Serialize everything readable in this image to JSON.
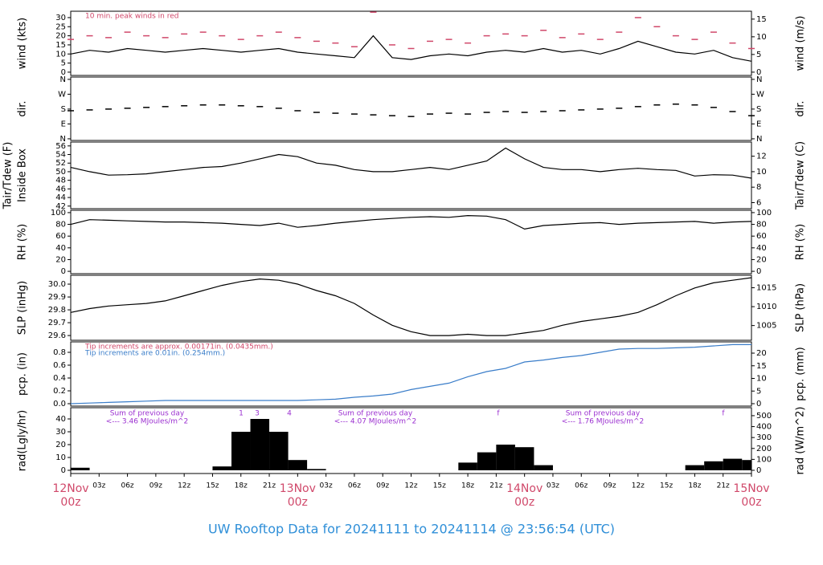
{
  "title": "UW Rooftop Data for 20241111  to  20241114 @ 23:56:54  (UTC)",
  "chart_data": [
    {
      "type": "line",
      "ylabel": "wind (kts)",
      "y2label": "wind (m/s)",
      "annotations": [
        {
          "text": "10 min. peak winds in red",
          "color": "#d0486a"
        }
      ],
      "xlim": [
        0,
        72
      ],
      "x": [
        0,
        2,
        4,
        6,
        8,
        10,
        12,
        14,
        16,
        18,
        20,
        22,
        24,
        26,
        28,
        30,
        32,
        34,
        36,
        38,
        40,
        42,
        44,
        46,
        48,
        50,
        52,
        54,
        56,
        58,
        60,
        62,
        64,
        66,
        68,
        70,
        72
      ],
      "ylim": [
        -1.8,
        33.5
      ],
      "yticks": [
        0,
        5,
        10,
        15,
        20,
        25,
        30
      ],
      "y2lim": [
        -0.93,
        17.23
      ],
      "y2ticks": [
        0,
        5,
        10,
        15
      ],
      "series": [
        {
          "color": "#000000",
          "marker": "line",
          "values": [
            10,
            12,
            11,
            13,
            12,
            11,
            12,
            13,
            12,
            11,
            12,
            13,
            11,
            10,
            9,
            8,
            20,
            8,
            7,
            9,
            10,
            9,
            11,
            12,
            11,
            13,
            11,
            12,
            10,
            13,
            17,
            14,
            11,
            10,
            12,
            8,
            6
          ]
        },
        {
          "color": "#d0486a",
          "marker": "dash",
          "values": [
            18,
            20,
            19,
            22,
            20,
            19,
            21,
            22,
            20,
            18,
            20,
            22,
            19,
            17,
            16,
            14,
            33,
            15,
            13,
            17,
            18,
            16,
            20,
            21,
            20,
            23,
            19,
            21,
            18,
            22,
            30,
            25,
            20,
            18,
            22,
            16,
            13
          ]
        }
      ]
    },
    {
      "type": "scatter",
      "ylabel": "dir.",
      "y2label": "dir.",
      "xlim": [
        0,
        72
      ],
      "x": [
        0,
        2,
        4,
        6,
        8,
        10,
        12,
        14,
        16,
        18,
        20,
        22,
        24,
        26,
        28,
        30,
        32,
        34,
        36,
        38,
        40,
        42,
        44,
        46,
        48,
        50,
        52,
        54,
        56,
        58,
        60,
        62,
        64,
        66,
        68,
        70,
        72
      ],
      "ylim": [
        -10,
        374
      ],
      "yticks": [
        {
          "value": 0,
          "label": "N"
        },
        {
          "value": 90,
          "label": "E"
        },
        {
          "value": 180,
          "label": "S"
        },
        {
          "value": 270,
          "label": "W"
        },
        {
          "value": 360,
          "label": "N"
        }
      ],
      "y2lim": [
        -10,
        374
      ],
      "y2ticks": [
        {
          "value": 0,
          "label": "N"
        },
        {
          "value": 90,
          "label": "E"
        },
        {
          "value": 180,
          "label": "S"
        },
        {
          "value": 270,
          "label": "W"
        },
        {
          "value": 360,
          "label": "N"
        }
      ],
      "series": [
        {
          "color": "#000000",
          "marker": "dash",
          "values": [
            170,
            175,
            180,
            185,
            190,
            195,
            200,
            205,
            205,
            200,
            195,
            185,
            170,
            160,
            155,
            150,
            145,
            140,
            135,
            150,
            155,
            150,
            160,
            165,
            160,
            165,
            170,
            175,
            180,
            185,
            195,
            205,
            210,
            205,
            190,
            165,
            140
          ]
        }
      ]
    },
    {
      "type": "line",
      "ylabel": "Tair/Tdew (F)",
      "ylabel2": "Inside Box",
      "y2label": "Tair/Tdew (C)",
      "xlim": [
        0,
        72
      ],
      "x": [
        0,
        2,
        4,
        6,
        8,
        10,
        12,
        14,
        16,
        18,
        20,
        22,
        24,
        26,
        28,
        30,
        32,
        34,
        36,
        38,
        40,
        42,
        44,
        46,
        48,
        50,
        52,
        54,
        56,
        58,
        60,
        62,
        64,
        66,
        68,
        70,
        72
      ],
      "ylim": [
        41.4,
        56.9
      ],
      "yticks": [
        42,
        44,
        46,
        48,
        50,
        52,
        54,
        56
      ],
      "y2lim": [
        5.22,
        13.83
      ],
      "y2ticks": [
        6,
        8,
        10,
        12
      ],
      "series": [
        {
          "color": "#000000",
          "marker": "line",
          "values": [
            51,
            50,
            49.2,
            49.3,
            49.5,
            50,
            50.5,
            51,
            51.2,
            52,
            53,
            54,
            53.5,
            52,
            51.5,
            50.5,
            50,
            50,
            50.5,
            51,
            50.5,
            51.5,
            52.5,
            55.5,
            53,
            51,
            50.5,
            50.5,
            50,
            50.5,
            50.8,
            50.5,
            50.3,
            49,
            49.3,
            49.2,
            48.5
          ]
        }
      ]
    },
    {
      "type": "line",
      "ylabel": "RH (%)",
      "y2label": "RH (%)",
      "xlim": [
        0,
        72
      ],
      "x": [
        0,
        2,
        4,
        6,
        8,
        10,
        12,
        14,
        16,
        18,
        20,
        22,
        24,
        26,
        28,
        30,
        32,
        34,
        36,
        38,
        40,
        42,
        44,
        46,
        48,
        50,
        52,
        54,
        56,
        58,
        60,
        62,
        64,
        66,
        68,
        70,
        72
      ],
      "ylim": [
        -4,
        104
      ],
      "yticks": [
        0,
        20,
        40,
        60,
        80,
        100
      ],
      "y2lim": [
        -4,
        104
      ],
      "y2ticks": [
        0,
        20,
        40,
        60,
        80,
        100
      ],
      "series": [
        {
          "color": "#000000",
          "marker": "line",
          "values": [
            80,
            88,
            87,
            86,
            85,
            84,
            84,
            83,
            82,
            80,
            78,
            82,
            75,
            78,
            82,
            85,
            88,
            90,
            92,
            93,
            92,
            95,
            94,
            88,
            72,
            78,
            80,
            82,
            83,
            80,
            82,
            83,
            84,
            85,
            82,
            84,
            85
          ]
        }
      ]
    },
    {
      "type": "line",
      "ylabel": "SLP (inHg)",
      "y2label": "SLP (hPa)",
      "xlim": [
        0,
        72
      ],
      "x": [
        0,
        2,
        4,
        6,
        8,
        10,
        12,
        14,
        16,
        18,
        20,
        22,
        24,
        26,
        28,
        30,
        32,
        34,
        36,
        38,
        40,
        42,
        44,
        46,
        48,
        50,
        52,
        54,
        56,
        58,
        60,
        62,
        64,
        66,
        68,
        70,
        72
      ],
      "ylim": [
        29.563,
        30.069
      ],
      "yticks": [
        29.6,
        29.7,
        29.8,
        29.9,
        {
          "value": 30,
          "label": "30.0"
        }
      ],
      "y2lim": [
        1001.1,
        1018.3
      ],
      "y2ticks": [
        1005,
        1010,
        1015
      ],
      "series": [
        {
          "color": "#000000",
          "marker": "line",
          "values": [
            29.78,
            29.81,
            29.83,
            29.84,
            29.85,
            29.87,
            29.91,
            29.95,
            29.99,
            30.02,
            30.04,
            30.03,
            30.0,
            29.95,
            29.91,
            29.85,
            29.76,
            29.68,
            29.63,
            29.6,
            29.6,
            29.61,
            29.6,
            29.6,
            29.62,
            29.64,
            29.68,
            29.71,
            29.73,
            29.75,
            29.78,
            29.84,
            29.91,
            29.97,
            30.01,
            30.03,
            30.05
          ]
        }
      ]
    },
    {
      "type": "line",
      "ylabel": "pcp. (in)",
      "y2label": "pcp. (mm)",
      "annotations": [
        {
          "text": "Tip increments are approx. 0.00171in. (0.0435mm.)",
          "color": "#d0486a"
        },
        {
          "text": "Tip increments are 0.01in. (0.254mm.)",
          "color": "#3a7dc9"
        }
      ],
      "xlim": [
        0,
        72
      ],
      "x": [
        0,
        2,
        4,
        6,
        8,
        10,
        12,
        14,
        16,
        18,
        20,
        22,
        24,
        26,
        28,
        30,
        32,
        34,
        36,
        38,
        40,
        42,
        44,
        46,
        48,
        50,
        52,
        54,
        56,
        58,
        60,
        62,
        64,
        66,
        68,
        70,
        72
      ],
      "ylim": [
        -0.0375,
        0.9625
      ],
      "yticks": [
        {
          "value": 0,
          "label": "0.0"
        },
        0.2,
        0.4,
        0.6,
        0.8
      ],
      "y2lim": [
        -0.95,
        24.45
      ],
      "y2ticks": [
        0,
        5,
        10,
        15,
        20
      ],
      "series": [
        {
          "color": "#3a7dc9",
          "marker": "line",
          "values": [
            0,
            0.01,
            0.02,
            0.03,
            0.04,
            0.05,
            0.05,
            0.05,
            0.05,
            0.05,
            0.05,
            0.05,
            0.05,
            0.06,
            0.07,
            0.1,
            0.12,
            0.15,
            0.22,
            0.27,
            0.32,
            0.42,
            0.5,
            0.55,
            0.65,
            0.68,
            0.72,
            0.75,
            0.8,
            0.85,
            0.86,
            0.86,
            0.87,
            0.88,
            0.9,
            0.92,
            0.92
          ]
        }
      ]
    },
    {
      "type": "bar",
      "ylabel": "rad(Lgly/hr)",
      "y2label": "rad (W/m^2)",
      "daily_sums": [
        {
          "label": "Sum of previous day",
          "value": "<--- 3.46 MJoules/m^2"
        },
        {
          "label": "Sum of previous day",
          "value": "<--- 4.07 MJoules/m^2"
        },
        {
          "label": "Sum of previous day",
          "value": "<--- 1.76 MJoules/m^2"
        }
      ],
      "markers": [
        "1",
        "3",
        "4",
        "f",
        "f"
      ],
      "marker_color": "#9b30d0",
      "xlim": [
        0,
        72
      ],
      "x": [
        0,
        2,
        4,
        6,
        8,
        10,
        12,
        14,
        16,
        18,
        20,
        22,
        24,
        26,
        28,
        30,
        32,
        34,
        36,
        38,
        40,
        42,
        44,
        46,
        48,
        50,
        52,
        54,
        56,
        58,
        60,
        62,
        64,
        66,
        68,
        70,
        72
      ],
      "ylim": [
        -2.5,
        48.75
      ],
      "yticks": [
        0,
        10,
        20,
        30,
        40
      ],
      "y2lim": [
        -29.4,
        573
      ],
      "y2ticks": [
        0,
        100,
        200,
        300,
        400,
        500
      ],
      "xticks": [
        {
          "value": 0,
          "label": "00z",
          "date": "12Nov"
        },
        {
          "value": 3,
          "label": "03z"
        },
        {
          "value": 6,
          "label": "06z"
        },
        {
          "value": 9,
          "label": "09z"
        },
        {
          "value": 12,
          "label": "12z"
        },
        {
          "value": 15,
          "label": "15z"
        },
        {
          "value": 18,
          "label": "18z"
        },
        {
          "value": 21,
          "label": "21z"
        },
        {
          "value": 24,
          "label": "00z",
          "date": "13Nov"
        },
        {
          "value": 27,
          "label": "03z"
        },
        {
          "value": 30,
          "label": "06z"
        },
        {
          "value": 33,
          "label": "09z"
        },
        {
          "value": 36,
          "label": "12z"
        },
        {
          "value": 39,
          "label": "15z"
        },
        {
          "value": 42,
          "label": "18z"
        },
        {
          "value": 45,
          "label": "21z"
        },
        {
          "value": 48,
          "label": "00z",
          "date": "14Nov"
        },
        {
          "value": 51,
          "label": "03z"
        },
        {
          "value": 54,
          "label": "06z"
        },
        {
          "value": 57,
          "label": "09z"
        },
        {
          "value": 60,
          "label": "12z"
        },
        {
          "value": 63,
          "label": "15z"
        },
        {
          "value": 66,
          "label": "18z"
        },
        {
          "value": 69,
          "label": "21z"
        },
        {
          "value": 72,
          "label": "00z",
          "date": "15Nov"
        }
      ],
      "date_color": "#d0486a",
      "series": [
        {
          "color": "#000000",
          "values": [
            2,
            0,
            0,
            0,
            0,
            0,
            0,
            0,
            3,
            30,
            40,
            30,
            8,
            1,
            0,
            0,
            0,
            0,
            0,
            0,
            0,
            6,
            14,
            20,
            18,
            4,
            0,
            0,
            0,
            0,
            0,
            0,
            0,
            4,
            7,
            9,
            8
          ]
        }
      ]
    }
  ]
}
